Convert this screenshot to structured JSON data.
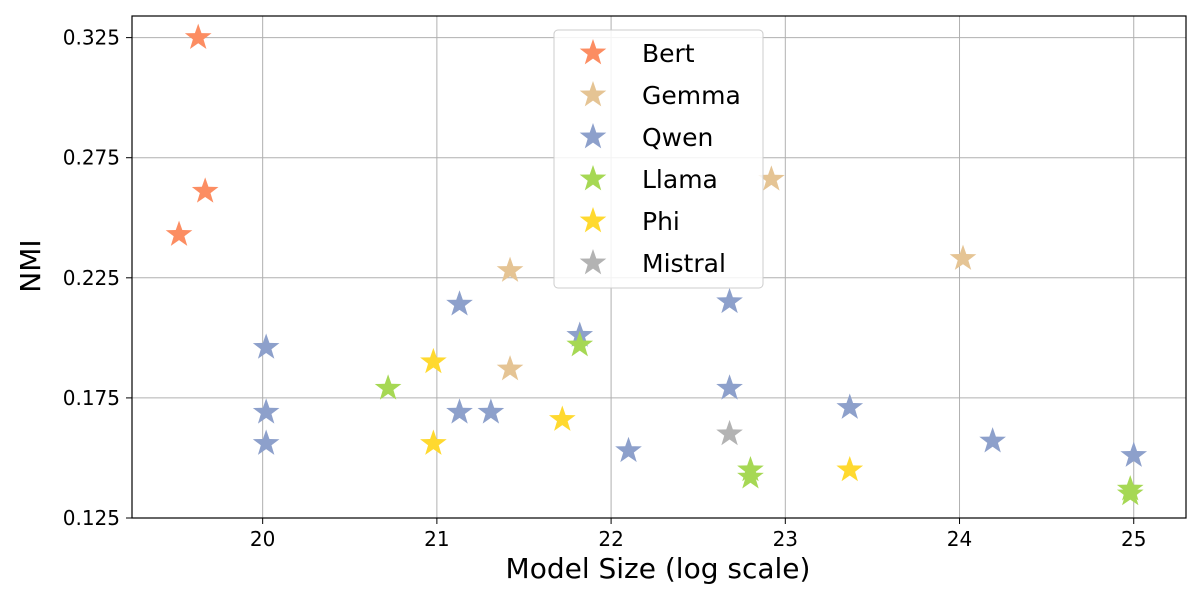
{
  "chart_data": {
    "type": "scatter",
    "xlabel": "Model Size (log scale)",
    "ylabel": "NMI",
    "xlim": [
      19.25,
      25.3
    ],
    "ylim": [
      0.125,
      0.334
    ],
    "xticks": [
      20,
      21,
      22,
      23,
      24,
      25
    ],
    "yticks": [
      0.125,
      0.175,
      0.225,
      0.275,
      0.325
    ],
    "xtick_labels": [
      "20",
      "21",
      "22",
      "23",
      "24",
      "25"
    ],
    "ytick_labels": [
      "0.125",
      "0.175",
      "0.225",
      "0.275",
      "0.325"
    ],
    "grid": true,
    "marker": "star",
    "legend_position": "top-center",
    "series": [
      {
        "name": "Bert",
        "color": "#fc8d62",
        "points": [
          [
            19.63,
            0.325
          ],
          [
            19.67,
            0.261
          ],
          [
            19.52,
            0.243
          ]
        ]
      },
      {
        "name": "Gemma",
        "color": "#e5c494",
        "points": [
          [
            21.42,
            0.228
          ],
          [
            21.42,
            0.187
          ],
          [
            22.92,
            0.266
          ],
          [
            24.02,
            0.233
          ]
        ]
      },
      {
        "name": "Qwen",
        "color": "#8da0cb",
        "points": [
          [
            20.02,
            0.196
          ],
          [
            20.02,
            0.169
          ],
          [
            20.02,
            0.156
          ],
          [
            21.13,
            0.214
          ],
          [
            21.13,
            0.169
          ],
          [
            21.31,
            0.169
          ],
          [
            21.82,
            0.201
          ],
          [
            22.1,
            0.153
          ],
          [
            22.68,
            0.215
          ],
          [
            22.68,
            0.179
          ],
          [
            23.37,
            0.171
          ],
          [
            24.19,
            0.157
          ],
          [
            25.0,
            0.151
          ]
        ]
      },
      {
        "name": "Llama",
        "color": "#a6d854",
        "points": [
          [
            20.72,
            0.179
          ],
          [
            21.82,
            0.197
          ],
          [
            22.8,
            0.145
          ],
          [
            22.8,
            0.142
          ],
          [
            24.98,
            0.137
          ],
          [
            24.98,
            0.135
          ]
        ]
      },
      {
        "name": "Phi",
        "color": "#ffd92f",
        "points": [
          [
            20.98,
            0.19
          ],
          [
            20.98,
            0.156
          ],
          [
            21.72,
            0.166
          ],
          [
            23.37,
            0.145
          ]
        ]
      },
      {
        "name": "Mistral",
        "color": "#b3b3b3",
        "points": [
          [
            22.68,
            0.16
          ]
        ]
      }
    ]
  }
}
